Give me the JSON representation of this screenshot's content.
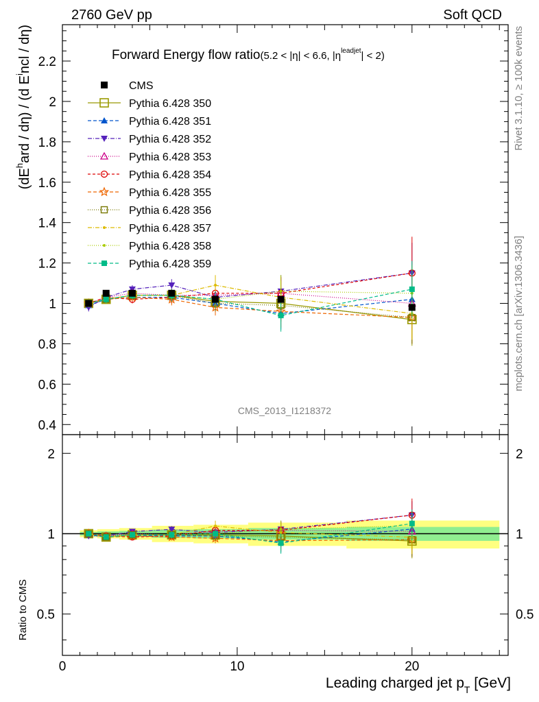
{
  "header": {
    "left": "2760 GeV pp",
    "right": "Soft QCD"
  },
  "side_labels": {
    "rivet": "Rivet 3.1.10, ≥ 100k events",
    "mcplots": "mcplots.cern.ch [arXiv:1306.3436]"
  },
  "watermark": "CMS_2013_I1218372",
  "chart_data": {
    "type": "scatter",
    "title": "Forward Energy flow ratio",
    "title_cut": "(5.2 < |η| < 6.6, |η",
    "title_cut_sup": "leadjet",
    "title_cut_end": "| < 2)",
    "ylabel": "(dE",
    "ylabel_sup": "h",
    "ylabel_rest": "ard / dη) / (d E",
    "ylabel_sub": "i",
    "ylabel_end": "ncl / dη)",
    "xlabel": "Leading charged jet p",
    "xlabel_sub": "T",
    "xlabel_unit": " [GeV]",
    "ratio_ylabel": "Ratio to CMS",
    "xlim": [
      0,
      25.5
    ],
    "ylim": [
      0.35,
      2.38
    ],
    "ratio_ylim": [
      0.35,
      2.35
    ],
    "ratio_log": true,
    "x_ticks": [
      0,
      10,
      20
    ],
    "y_ticks": [
      0.4,
      0.6,
      0.8,
      1,
      1.2,
      1.4,
      1.6,
      1.8,
      2,
      2.2
    ],
    "ratio_ticks": [
      0.5,
      1,
      2
    ],
    "x": [
      1.5,
      2.5,
      4,
      6.25,
      8.75,
      12.5,
      20
    ],
    "cms": {
      "name": "CMS",
      "values": [
        1.0,
        1.05,
        1.05,
        1.05,
        1.02,
        1.02,
        0.98
      ],
      "band_rel": [
        0.03,
        0.04,
        0.05,
        0.07,
        0.08,
        0.1,
        0.12
      ]
    },
    "series": [
      {
        "name": "Pythia 6.428 350",
        "color": "#999900",
        "marker": "square-open",
        "dash": "",
        "values": [
          1.0,
          1.02,
          1.04,
          1.04,
          1.01,
          1.0,
          0.92
        ],
        "err": [
          0.02,
          0.02,
          0.02,
          0.03,
          0.04,
          0.08,
          0.13
        ]
      },
      {
        "name": "Pythia 6.428 351",
        "color": "#0055cc",
        "marker": "triangle-up",
        "dash": "5,3",
        "values": [
          0.99,
          1.02,
          1.03,
          1.03,
          1.0,
          0.95,
          1.02
        ],
        "err": [
          0.02,
          0.02,
          0.02,
          0.03,
          0.04,
          0.08,
          0.13
        ]
      },
      {
        "name": "Pythia 6.428 352",
        "color": "#5522bb",
        "marker": "triangle-down",
        "dash": "6,2,1,2",
        "values": [
          0.98,
          1.03,
          1.07,
          1.09,
          1.03,
          1.06,
          1.15
        ],
        "err": [
          0.02,
          0.02,
          0.02,
          0.03,
          0.04,
          0.08,
          0.15
        ]
      },
      {
        "name": "Pythia 6.428 353",
        "color": "#cc0088",
        "marker": "triangle-open",
        "dash": "1,2",
        "values": [
          1.0,
          1.03,
          1.05,
          1.04,
          1.04,
          1.05,
          1.0
        ],
        "err": [
          0.02,
          0.02,
          0.02,
          0.03,
          0.04,
          0.08,
          0.13
        ]
      },
      {
        "name": "Pythia 6.428 354",
        "color": "#dd0000",
        "marker": "circle-open",
        "dash": "4,3",
        "values": [
          1.0,
          1.03,
          1.02,
          1.03,
          1.05,
          1.05,
          1.15
        ],
        "err": [
          0.02,
          0.02,
          0.02,
          0.03,
          0.04,
          0.08,
          0.18
        ]
      },
      {
        "name": "Pythia 6.428 355",
        "color": "#ee6600",
        "marker": "star-open",
        "dash": "5,3",
        "values": [
          1.0,
          1.02,
          1.03,
          1.02,
          0.98,
          0.96,
          0.93
        ],
        "err": [
          0.02,
          0.02,
          0.02,
          0.03,
          0.04,
          0.08,
          0.13
        ]
      },
      {
        "name": "Pythia 6.428 356",
        "color": "#777700",
        "marker": "square-open-small",
        "dash": "1,2",
        "values": [
          1.0,
          1.02,
          1.04,
          1.04,
          1.0,
          0.99,
          0.93
        ],
        "err": [
          0.02,
          0.02,
          0.02,
          0.03,
          0.04,
          0.08,
          0.13
        ]
      },
      {
        "name": "Pythia 6.428 357",
        "color": "#ddbb00",
        "marker": "dot",
        "dash": "6,2,1,2",
        "values": [
          1.0,
          1.02,
          1.04,
          1.04,
          1.09,
          1.03,
          0.95
        ],
        "err": [
          0.02,
          0.02,
          0.02,
          0.03,
          0.05,
          0.08,
          0.13
        ]
      },
      {
        "name": "Pythia 6.428 358",
        "color": "#aacc00",
        "marker": "dot",
        "dash": "1,2",
        "values": [
          1.0,
          1.02,
          1.04,
          1.04,
          1.02,
          1.06,
          1.05
        ],
        "err": [
          0.02,
          0.02,
          0.02,
          0.03,
          0.04,
          0.08,
          0.14
        ]
      },
      {
        "name": "Pythia 6.428 359",
        "color": "#00bb88",
        "marker": "square",
        "dash": "5,3",
        "values": [
          1.0,
          1.02,
          1.04,
          1.04,
          1.02,
          0.94,
          1.07
        ],
        "err": [
          0.02,
          0.02,
          0.02,
          0.03,
          0.04,
          0.08,
          0.14
        ]
      }
    ]
  }
}
